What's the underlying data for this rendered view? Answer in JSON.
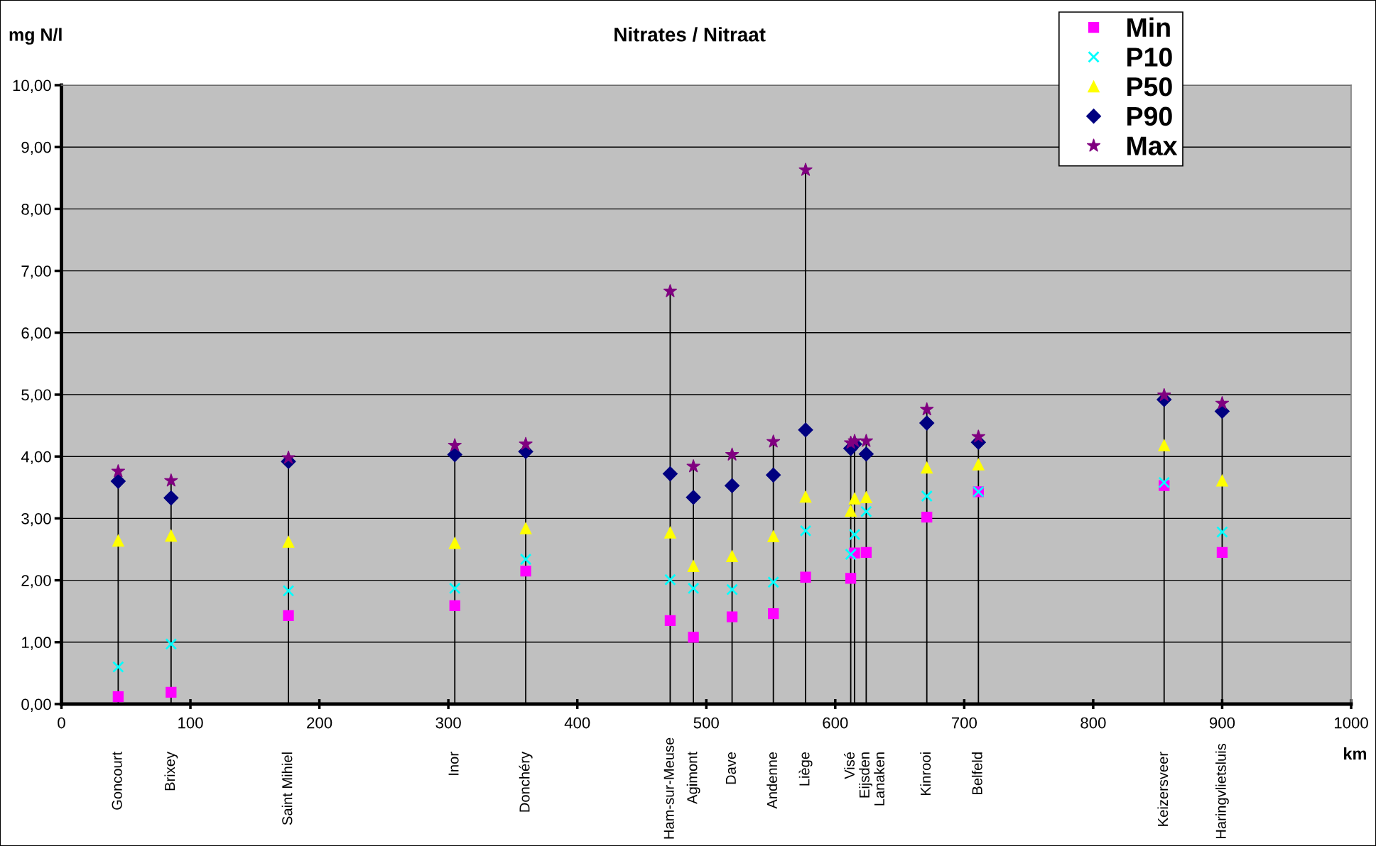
{
  "chart_data": {
    "type": "scatter",
    "title": "Nitrates / Nitraat",
    "xlabel": "km",
    "ylabel": "mg N/l",
    "x": [
      44,
      85,
      176,
      305,
      360,
      472,
      490,
      520,
      552,
      577,
      612,
      615,
      624,
      671,
      711,
      855,
      900
    ],
    "series": [
      {
        "name": "Min",
        "color": "#ff00ff",
        "marker": "square",
        "values": [
          0.12,
          0.19,
          1.43,
          1.59,
          2.15,
          1.35,
          1.08,
          1.41,
          1.46,
          2.05,
          2.03,
          2.44,
          2.45,
          3.02,
          3.43,
          3.53,
          2.45
        ]
      },
      {
        "name": "P10",
        "color": "#00ffff",
        "marker": "cross",
        "values": [
          0.6,
          0.97,
          1.83,
          1.87,
          2.34,
          2.01,
          1.87,
          1.85,
          1.97,
          2.8,
          2.42,
          2.74,
          3.11,
          3.36,
          3.43,
          3.58,
          2.78
        ]
      },
      {
        "name": "P50",
        "color": "#ffff00",
        "marker": "triangle",
        "values": [
          2.64,
          2.72,
          2.62,
          2.6,
          2.84,
          2.77,
          2.23,
          2.39,
          2.71,
          3.35,
          3.12,
          3.32,
          3.34,
          3.82,
          3.87,
          4.18,
          3.61
        ]
      },
      {
        "name": "P90",
        "color": "#000080",
        "marker": "diamond",
        "values": [
          3.6,
          3.33,
          3.92,
          4.03,
          4.08,
          3.72,
          3.34,
          3.53,
          3.7,
          4.43,
          4.13,
          4.2,
          4.04,
          4.54,
          4.23,
          4.92,
          4.73
        ]
      },
      {
        "name": "Max",
        "type": "lollipop",
        "color": "#800080",
        "marker": "star",
        "values": [
          3.76,
          3.61,
          3.98,
          4.18,
          4.2,
          6.67,
          3.84,
          4.03,
          4.24,
          8.63,
          4.22,
          4.25,
          4.25,
          4.76,
          4.32,
          4.99,
          4.86
        ]
      }
    ],
    "xlim": [
      0,
      1000
    ],
    "xticks": [
      0,
      100,
      200,
      300,
      400,
      500,
      600,
      700,
      800,
      900,
      1000
    ],
    "ylim": [
      0,
      10
    ],
    "yticks": [
      {
        "value": 0,
        "label": "0,00"
      },
      {
        "value": 1,
        "label": "1,00"
      },
      {
        "value": 2,
        "label": "2,00"
      },
      {
        "value": 3,
        "label": "3,00"
      },
      {
        "value": 4,
        "label": "4,00"
      },
      {
        "value": 5,
        "label": "5,00"
      },
      {
        "value": 6,
        "label": "6,00"
      },
      {
        "value": 7,
        "label": "7,00"
      },
      {
        "value": 8,
        "label": "8,00"
      },
      {
        "value": 9,
        "label": "9,00"
      },
      {
        "value": 10,
        "label": "10,00"
      }
    ],
    "grid": "y",
    "legend": "top right",
    "annotations": [
      "Goncourt",
      "Brixey",
      "Saint Mihiel",
      "Inor",
      "Donchéry",
      "Ham-sur-Meuse",
      "Agimont",
      "Dave",
      "Andenne",
      "Liège",
      "Visé",
      "Eijsden",
      "Lanaken",
      "Kinrooi",
      "Belfeld",
      "Keizersveer",
      "Haringvlietsluis"
    ]
  }
}
